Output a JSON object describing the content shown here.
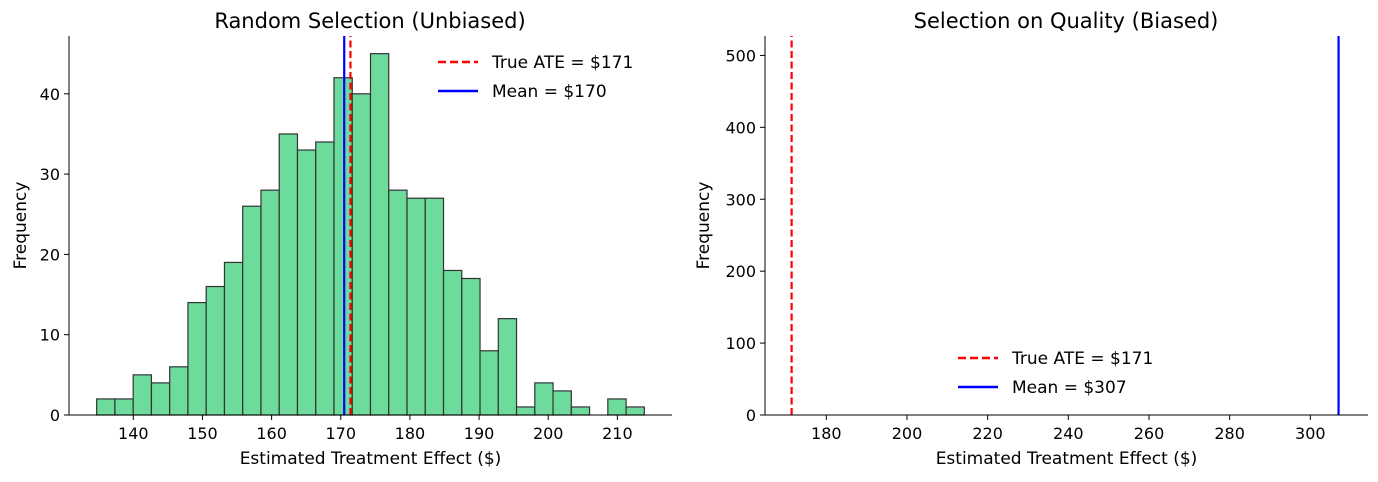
{
  "chart_data": [
    {
      "type": "bar",
      "title": "Random Selection (Unbiased)",
      "xlabel": "Estimated Treatment Effect ($)",
      "ylabel": "Frequency",
      "xlim": [
        130.7,
        217.9
      ],
      "ylim": [
        0,
        47.2
      ],
      "xticks": [
        140,
        150,
        160,
        170,
        180,
        190,
        200,
        210
      ],
      "yticks": [
        0,
        10,
        20,
        30,
        40
      ],
      "bin_start": 134.7,
      "bin_width": 2.64,
      "values": [
        2,
        2,
        5,
        4,
        6,
        14,
        16,
        19,
        26,
        28,
        35,
        33,
        34,
        42,
        40,
        45,
        28,
        27,
        27,
        18,
        17,
        8,
        12,
        1,
        4,
        3,
        1,
        0,
        2,
        1
      ],
      "bar_color": "#6ddb9b",
      "edge_color": "#333333",
      "vlines": [
        {
          "name": "True ATE = $171",
          "x": 171.4,
          "color": "#ff0000",
          "style": "dashed"
        },
        {
          "name": "Mean = $170",
          "x": 170.5,
          "color": "#0000ff",
          "style": "solid"
        }
      ],
      "legend": "top-right",
      "grid": false
    },
    {
      "type": "bar",
      "title": "Selection on Quality (Biased)",
      "xlabel": "Estimated Treatment Effect ($)",
      "ylabel": "Frequency",
      "xlim": [
        164.8,
        314.3
      ],
      "ylim": [
        0,
        527
      ],
      "xticks": [
        180,
        200,
        220,
        240,
        260,
        280,
        300
      ],
      "yticks": [
        0,
        100,
        200,
        300,
        400,
        500
      ],
      "values": [],
      "vlines": [
        {
          "name": "True ATE = $171",
          "x": 171.4,
          "color": "#ff0000",
          "style": "dashed"
        },
        {
          "name": "Mean = $307",
          "x": 307,
          "color": "#0000ff",
          "style": "solid"
        }
      ],
      "legend": "lower-center",
      "grid": false
    }
  ]
}
